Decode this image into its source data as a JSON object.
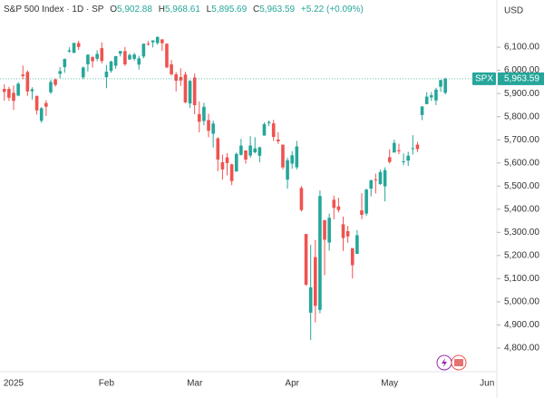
{
  "chart_data": {
    "type": "candlestick",
    "title": "S&P 500 Index · 1D · SP",
    "header": {
      "open_prefix": "O",
      "open": "5,902.88",
      "high_prefix": "H",
      "high": "5,968.61",
      "low_prefix": "L",
      "low": "5,895.69",
      "close_prefix": "C",
      "close": "5,963.59",
      "change": "+5.22 (+0.09%)"
    },
    "currency": "USD",
    "symbol_tag": "SPX",
    "last_price_label": "5,963.59",
    "up_color": "#26a69a",
    "down_color": "#ef5350",
    "categories": [
      null,
      null,
      "2025",
      null,
      null,
      null,
      null,
      null,
      null,
      null,
      null,
      null,
      null,
      null,
      null,
      null,
      null,
      null,
      null,
      null,
      null,
      null,
      "Feb",
      null,
      null,
      null,
      null,
      null,
      null,
      null,
      null,
      null,
      null,
      null,
      null,
      null,
      null,
      null,
      null,
      null,
      null,
      "Mar",
      null,
      null,
      null,
      null,
      null,
      null,
      null,
      null,
      null,
      null,
      null,
      null,
      null,
      null,
      null,
      null,
      null,
      null,
      null,
      null,
      "Apr",
      null,
      null,
      null,
      null,
      null,
      null,
      null,
      null,
      null,
      null,
      null,
      null,
      null,
      null,
      null,
      null,
      null,
      null,
      null,
      null,
      "May",
      null,
      null,
      null,
      null,
      null,
      null,
      null,
      null,
      null,
      null,
      null,
      null,
      null,
      null,
      null,
      null,
      null,
      null,
      null,
      null,
      "Jun"
    ],
    "open": [
      5920,
      5920,
      5903,
      5891,
      5982,
      5993,
      5910,
      5890,
      5782,
      5859,
      5905,
      5961,
      5985,
      6014,
      6081,
      6076,
      6118,
      5970,
      6026,
      6057,
      6050,
      6096,
      5970,
      5998,
      6020,
      6072,
      6083,
      6047,
      6050,
      6025,
      6060,
      6115,
      6121,
      6118,
      6134,
      6115,
      6026,
      5983,
      5971,
      5982,
      5857,
      5969,
      5811,
      5781,
      5785,
      5726,
      5706,
      5603,
      5624,
      5594,
      5563,
      5635,
      5654,
      5632,
      5646,
      5631,
      5718,
      5772,
      5771,
      5701,
      5679,
      5528,
      5597,
      5581,
      5492,
      5293,
      4953,
      5193,
      4965,
      5353,
      5256,
      5441,
      5412,
      5335,
      5305,
      5232,
      5207,
      5395,
      5381,
      5489,
      5529,
      5509,
      5499,
      5625,
      5645,
      5655,
      5605,
      5610,
      5663,
      5679,
      5807,
      5854,
      5883,
      5870,
      5929,
      5902.88,
      null,
      null,
      null,
      null,
      null,
      null,
      null,
      null,
      null
    ],
    "high": [
      5940,
      5929,
      5935,
      5949,
      6021,
      6000,
      5927,
      5890,
      5842,
      5871,
      5960,
      5965,
      6014,
      6051,
      6100,
      6119,
      6128,
      6017,
      6070,
      6062,
      6087,
      6121,
      6023,
      6042,
      6062,
      6084,
      6101,
      6073,
      6076,
      6063,
      6116,
      6127,
      6130,
      6147,
      6134,
      6117,
      6044,
      5992,
      6009,
      5994,
      5959,
      5986,
      5866,
      5860,
      5812,
      5783,
      5712,
      5636,
      5642,
      5597,
      5645,
      5704,
      5654,
      5716,
      5711,
      5670,
      5775,
      5783,
      5786,
      5733,
      5679,
      5623,
      5651,
      5695,
      5500,
      5293,
      5246,
      5267,
      5481,
      5353,
      5381,
      5459,
      5450,
      5368,
      5328,
      5232,
      5310,
      5469,
      5489,
      5528,
      5554,
      5571,
      5581,
      5659,
      5700,
      5683,
      5641,
      5648,
      5720,
      5691,
      5845,
      5906,
      5906,
      5925,
      5958,
      5968.61,
      null,
      null,
      null,
      null,
      null,
      null,
      null,
      null,
      null
    ],
    "low": [
      5869,
      5868,
      5829,
      5888,
      5961,
      5890,
      5874,
      5809,
      5773,
      5803,
      5898,
      5930,
      5966,
      5990,
      6076,
      6074,
      6088,
      5962,
      5995,
      6012,
      6040,
      6030,
      5923,
      5990,
      6007,
      6060,
      6019,
      6046,
      6042,
      6003,
      6052,
      6107,
      6099,
      6111,
      6084,
      6009,
      5977,
      5909,
      5933,
      5858,
      5837,
      5810,
      5732,
      5762,
      5711,
      5666,
      5564,
      5528,
      5546,
      5504,
      5563,
      5632,
      5597,
      5622,
      5641,
      5603,
      5718,
      5759,
      5695,
      5682,
      5572,
      5489,
      5575,
      5572,
      5390,
      5069,
      4835,
      4911,
      4950,
      5115,
      5221,
      5356,
      5386,
      5220,
      5255,
      5101,
      5207,
      5357,
      5371,
      5456,
      5468,
      5505,
      5434,
      5597,
      5645,
      5638,
      5590,
      5587,
      5636,
      5647,
      5785,
      5854,
      5868,
      5850,
      5907,
      5895.69,
      null,
      null,
      null,
      null,
      null,
      null,
      null,
      null,
      null
    ],
    "close": [
      5906.94,
      5881.63,
      5868.55,
      5942.47,
      5975.38,
      5909.03,
      5918.25,
      5827.04,
      5836.22,
      5842.91,
      5949.91,
      5937.34,
      5996.66,
      6049.24,
      6086.37,
      6118.71,
      6101.24,
      6012.28,
      6067.7,
      6039.31,
      6071.17,
      6040.53,
      5994.57,
      6037.88,
      6061.48,
      6083.57,
      6025.99,
      6066.44,
      6068.5,
      6051.97,
      6115.07,
      6114.63,
      6129.58,
      6144.15,
      6117.52,
      6013.13,
      5983.25,
      5955.25,
      5956.06,
      5861.57,
      5954.5,
      5849.72,
      5778.15,
      5842.63,
      5738.52,
      5770.2,
      5614.56,
      5572.07,
      5599.3,
      5521.52,
      5638.94,
      5675.12,
      5614.66,
      5675.29,
      5662.89,
      5667.56,
      5767.57,
      5776.65,
      5712.2,
      5693.31,
      5580.94,
      5611.85,
      5633.07,
      5670.97,
      5396.52,
      5074.08,
      5062.25,
      4982.77,
      5456.9,
      5268.05,
      5363.36,
      5405.97,
      5396.63,
      5275.7,
      5282.7,
      5158.2,
      5287.76,
      5375.86,
      5484.77,
      5525.21,
      5528.75,
      5560.83,
      5569.06,
      5604.14,
      5686.67,
      5650.38,
      5606.91,
      5631.28,
      5663.94,
      5659.91,
      5844.19,
      5886.55,
      5892.58,
      5916.93,
      5958.38,
      5963.59,
      null,
      null,
      null,
      null,
      null,
      null,
      null,
      null,
      null
    ],
    "ylim": [
      4698,
      6304
    ],
    "yticks": [
      {
        "value": 4800,
        "label": "4,800.00"
      },
      {
        "value": 4900,
        "label": "4,900.00"
      },
      {
        "value": 5000,
        "label": "5,000.00"
      },
      {
        "value": 5100,
        "label": "5,100.00"
      },
      {
        "value": 5200,
        "label": "5,200.00"
      },
      {
        "value": 5300,
        "label": "5,300.00"
      },
      {
        "value": 5400,
        "label": "5,400.00"
      },
      {
        "value": 5500,
        "label": "5,500.00"
      },
      {
        "value": 5600,
        "label": "5,600.00"
      },
      {
        "value": 5700,
        "label": "5,700.00"
      },
      {
        "value": 5800,
        "label": "5,800.00"
      },
      {
        "value": 5900,
        "label": "5,900.00"
      },
      {
        "value": 6000,
        "label": "6,000.00"
      },
      {
        "value": 6100,
        "label": "6,100.00"
      }
    ],
    "grid": false
  }
}
